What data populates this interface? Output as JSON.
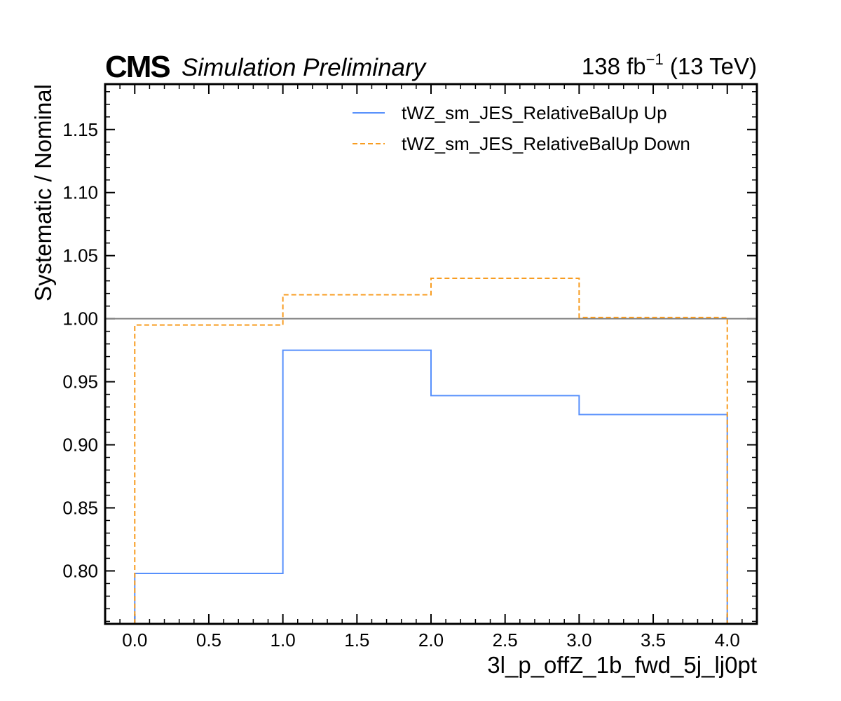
{
  "header": {
    "experiment": "CMS",
    "status": "Simulation Preliminary",
    "lumi_value": "138 fb",
    "lumi_exp": "−1",
    "energy": " (13 TeV)"
  },
  "chart_data": {
    "type": "line",
    "step": true,
    "xlabel": "3l_p_offZ_1b_fwd_5j_lj0pt",
    "ylabel": "Systematic / Nominal",
    "xlim": [
      -0.2,
      4.2
    ],
    "ylim": [
      0.758,
      1.186
    ],
    "x_ticks": [
      0.0,
      0.5,
      1.0,
      1.5,
      2.0,
      2.5,
      3.0,
      3.5,
      4.0
    ],
    "x_tick_labels": [
      "0.0",
      "0.5",
      "1.0",
      "1.5",
      "2.0",
      "2.5",
      "3.0",
      "3.5",
      "4.0"
    ],
    "y_ticks": [
      0.8,
      0.85,
      0.9,
      0.95,
      1.0,
      1.05,
      1.1,
      1.15
    ],
    "y_tick_labels": [
      "0.80",
      "0.85",
      "0.90",
      "0.95",
      "1.00",
      "1.05",
      "1.10",
      "1.15"
    ],
    "bin_edges": [
      0,
      1,
      2,
      3,
      4
    ],
    "reference_line": 1.0,
    "legend_position": "top-right",
    "series": [
      {
        "name": "tWZ_sm_JES_RelativeBalUp Up",
        "values": [
          0.798,
          0.975,
          0.939,
          0.924
        ],
        "color": "#5790fc",
        "style": "solid"
      },
      {
        "name": "tWZ_sm_JES_RelativeBalUp Down",
        "values": [
          0.995,
          1.019,
          1.032,
          1.001
        ],
        "color": "#f89c20",
        "style": "dashed"
      }
    ]
  }
}
